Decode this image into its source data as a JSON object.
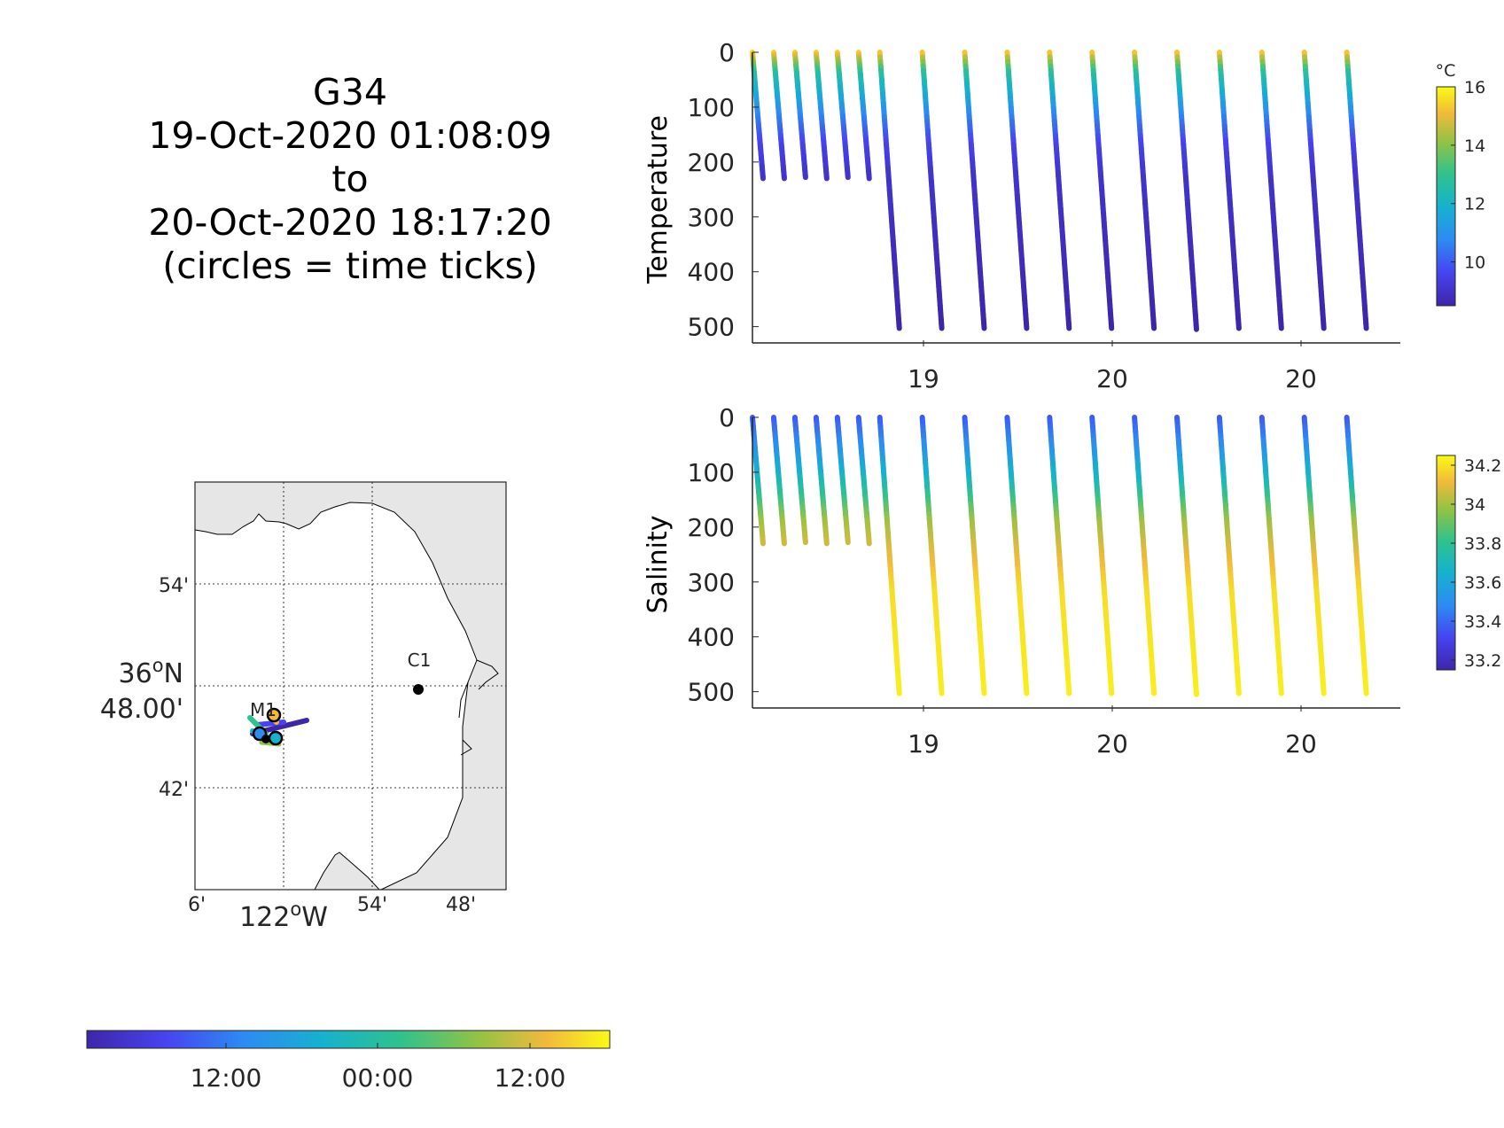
{
  "title": {
    "glider": "G34",
    "start": "19-Oct-2020 01:08:09",
    "to": "to",
    "end": "20-Oct-2020 18:17:20",
    "note": "(circles = time ticks)"
  },
  "colormap": [
    "#3e26a8",
    "#4743f0",
    "#2d8bf2",
    "#16b1cf",
    "#2ec28e",
    "#94c244",
    "#f2ba3a",
    "#f9fb15"
  ],
  "map": {
    "lat_ticks": [
      "54'",
      "36°N 48.00'",
      "42'"
    ],
    "lon_ticks": [
      "6'",
      "122°W",
      "54'",
      "48'"
    ],
    "stations": [
      {
        "label": "M1"
      },
      {
        "label": "C1"
      }
    ],
    "land_color": "#e6e6e6"
  },
  "time_colorbar": {
    "ticks": [
      "12:00",
      "00:00",
      "12:00"
    ]
  },
  "chart_data": [
    {
      "type": "scatter",
      "panel": "temperature",
      "ylabel": "Temperature",
      "colorbar_unit": "°C",
      "colorbar_ticks": [
        10,
        12,
        14,
        16
      ],
      "colorbar_range": [
        8.5,
        16.0
      ],
      "y_reversed": true,
      "ylim": [
        0,
        520
      ],
      "yticks": [
        0,
        100,
        200,
        300,
        400,
        500
      ],
      "x_tick_labels": [
        "19",
        "20",
        "20"
      ],
      "profiles": [
        {
          "x": 0.0,
          "max_depth": 230
        },
        {
          "x": 0.05,
          "max_depth": 230
        },
        {
          "x": 0.1,
          "max_depth": 228
        },
        {
          "x": 0.15,
          "max_depth": 230
        },
        {
          "x": 0.2,
          "max_depth": 228
        },
        {
          "x": 0.25,
          "max_depth": 230
        },
        {
          "x": 0.3,
          "max_depth": 503
        },
        {
          "x": 0.4,
          "max_depth": 503
        },
        {
          "x": 0.5,
          "max_depth": 503
        },
        {
          "x": 0.6,
          "max_depth": 503
        },
        {
          "x": 0.7,
          "max_depth": 503
        },
        {
          "x": 0.8,
          "max_depth": 503
        },
        {
          "x": 0.9,
          "max_depth": 503
        },
        {
          "x": 1.0,
          "max_depth": 505
        },
        {
          "x": 1.1,
          "max_depth": 503
        },
        {
          "x": 1.2,
          "max_depth": 503
        },
        {
          "x": 1.3,
          "max_depth": 503
        },
        {
          "x": 1.4,
          "max_depth": 503
        }
      ],
      "value_by_depth": [
        [
          0,
          15.5
        ],
        [
          15,
          14.0
        ],
        [
          40,
          12.5
        ],
        [
          80,
          11.5
        ],
        [
          120,
          10.5
        ],
        [
          170,
          9.5
        ],
        [
          230,
          9.0
        ],
        [
          500,
          8.5
        ]
      ]
    },
    {
      "type": "scatter",
      "panel": "salinity",
      "ylabel": "Salinity",
      "colorbar_ticks": [
        "34.2",
        "34",
        "33.8",
        "33.6",
        "33.4",
        "33.2"
      ],
      "colorbar_range": [
        33.15,
        34.25
      ],
      "y_reversed": true,
      "ylim": [
        0,
        520
      ],
      "yticks": [
        0,
        100,
        200,
        300,
        400,
        500
      ],
      "x_tick_labels": [
        "19",
        "20",
        "20"
      ],
      "profiles": [
        {
          "x": 0.0,
          "max_depth": 230
        },
        {
          "x": 0.05,
          "max_depth": 230
        },
        {
          "x": 0.1,
          "max_depth": 228
        },
        {
          "x": 0.15,
          "max_depth": 230
        },
        {
          "x": 0.2,
          "max_depth": 228
        },
        {
          "x": 0.25,
          "max_depth": 230
        },
        {
          "x": 0.3,
          "max_depth": 503
        },
        {
          "x": 0.4,
          "max_depth": 503
        },
        {
          "x": 0.5,
          "max_depth": 503
        },
        {
          "x": 0.6,
          "max_depth": 503
        },
        {
          "x": 0.7,
          "max_depth": 503
        },
        {
          "x": 0.8,
          "max_depth": 503
        },
        {
          "x": 0.9,
          "max_depth": 503
        },
        {
          "x": 1.0,
          "max_depth": 505
        },
        {
          "x": 1.1,
          "max_depth": 503
        },
        {
          "x": 1.2,
          "max_depth": 503
        },
        {
          "x": 1.3,
          "max_depth": 503
        },
        {
          "x": 1.4,
          "max_depth": 503
        }
      ],
      "value_by_depth": [
        [
          0,
          33.35
        ],
        [
          60,
          33.5
        ],
        [
          110,
          33.65
        ],
        [
          150,
          33.8
        ],
        [
          190,
          33.95
        ],
        [
          240,
          34.05
        ],
        [
          320,
          34.18
        ],
        [
          500,
          34.22
        ]
      ]
    }
  ]
}
